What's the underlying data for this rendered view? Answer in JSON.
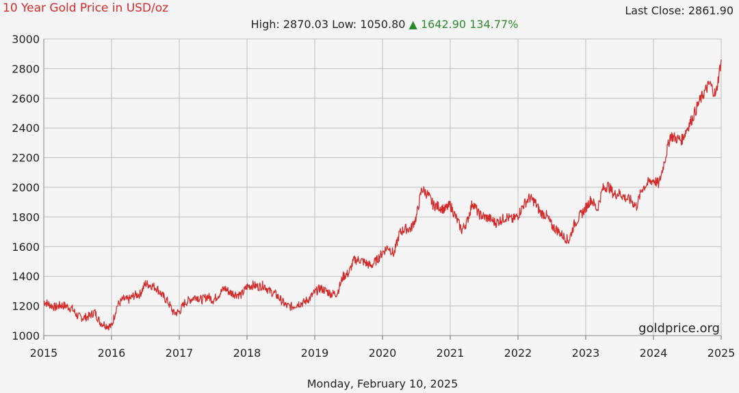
{
  "header": {
    "title": "10 Year Gold Price in USD/oz",
    "last_close_label": "Last Close:",
    "last_close_value": "2861.90",
    "high_label": "High:",
    "high_value": "2870.03",
    "low_label": "Low:",
    "low_value": "1050.80",
    "change_arrow": "▲",
    "change_value": "1642.90",
    "change_percent": "134.77%"
  },
  "watermark": "goldprice.org",
  "footer": {
    "date": "Monday, February 10, 2025"
  },
  "colors": {
    "title": "#d32a2a",
    "series": "#d32a2a",
    "positive_change": "#2a8a2a",
    "grid": "#bdbdbd",
    "background": "#f5f5f5"
  },
  "chart_data": {
    "type": "line",
    "title": "10 Year Gold Price in USD/oz",
    "xlabel": "",
    "ylabel": "",
    "xlim": [
      2015,
      2025
    ],
    "ylim": [
      1000,
      3000
    ],
    "grid": true,
    "x_ticks": [
      "2015",
      "2016",
      "2017",
      "2018",
      "2019",
      "2020",
      "2021",
      "2022",
      "2023",
      "2024",
      "2025"
    ],
    "y_ticks": [
      "1000",
      "1200",
      "1400",
      "1600",
      "1800",
      "2000",
      "2200",
      "2400",
      "2600",
      "2800",
      "3000"
    ],
    "series": [
      {
        "x": [
          2015.0,
          2015.08,
          2015.17,
          2015.25,
          2015.33,
          2015.42,
          2015.5,
          2015.58,
          2015.67,
          2015.75,
          2015.83,
          2015.92,
          2016.0,
          2016.08,
          2016.17,
          2016.25,
          2016.33,
          2016.42,
          2016.5,
          2016.58,
          2016.67,
          2016.75,
          2016.83,
          2016.92,
          2017.0,
          2017.08,
          2017.17,
          2017.25,
          2017.33,
          2017.42,
          2017.5,
          2017.58,
          2017.67,
          2017.75,
          2017.83,
          2017.92,
          2018.0,
          2018.08,
          2018.17,
          2018.25,
          2018.33,
          2018.42,
          2018.5,
          2018.58,
          2018.67,
          2018.75,
          2018.83,
          2018.92,
          2019.0,
          2019.08,
          2019.17,
          2019.25,
          2019.33,
          2019.42,
          2019.5,
          2019.58,
          2019.67,
          2019.75,
          2019.83,
          2019.92,
          2020.0,
          2020.08,
          2020.17,
          2020.25,
          2020.33,
          2020.42,
          2020.5,
          2020.58,
          2020.67,
          2020.75,
          2020.83,
          2020.92,
          2021.0,
          2021.08,
          2021.17,
          2021.25,
          2021.33,
          2021.42,
          2021.5,
          2021.58,
          2021.67,
          2021.75,
          2021.83,
          2021.92,
          2022.0,
          2022.08,
          2022.17,
          2022.25,
          2022.33,
          2022.42,
          2022.5,
          2022.58,
          2022.67,
          2022.75,
          2022.83,
          2022.92,
          2023.0,
          2023.08,
          2023.17,
          2023.25,
          2023.33,
          2023.42,
          2023.5,
          2023.58,
          2023.67,
          2023.75,
          2023.83,
          2023.92,
          2024.0,
          2024.08,
          2024.17,
          2024.25,
          2024.33,
          2024.42,
          2024.5,
          2024.58,
          2024.67,
          2024.75,
          2024.83,
          2024.92,
          2025.0
        ],
        "y": [
          1230,
          1210,
          1190,
          1205,
          1200,
          1180,
          1130,
          1120,
          1130,
          1160,
          1090,
          1070,
          1060,
          1200,
          1245,
          1240,
          1270,
          1280,
          1350,
          1340,
          1320,
          1270,
          1230,
          1150,
          1160,
          1220,
          1245,
          1265,
          1240,
          1265,
          1240,
          1275,
          1320,
          1290,
          1280,
          1275,
          1330,
          1340,
          1330,
          1340,
          1300,
          1280,
          1240,
          1200,
          1195,
          1215,
          1220,
          1250,
          1290,
          1320,
          1300,
          1280,
          1285,
          1400,
          1420,
          1510,
          1510,
          1490,
          1470,
          1510,
          1560,
          1600,
          1550,
          1690,
          1720,
          1720,
          1800,
          1990,
          1950,
          1880,
          1870,
          1850,
          1880,
          1800,
          1710,
          1770,
          1900,
          1820,
          1800,
          1790,
          1760,
          1780,
          1800,
          1780,
          1810,
          1880,
          1930,
          1900,
          1830,
          1810,
          1740,
          1710,
          1670,
          1640,
          1750,
          1810,
          1860,
          1920,
          1850,
          1990,
          2010,
          1950,
          1960,
          1930,
          1910,
          1870,
          1990,
          2030,
          2050,
          2020,
          2190,
          2350,
          2330,
          2320,
          2400,
          2470,
          2570,
          2640,
          2700,
          2620,
          2861.9
        ]
      }
    ]
  }
}
